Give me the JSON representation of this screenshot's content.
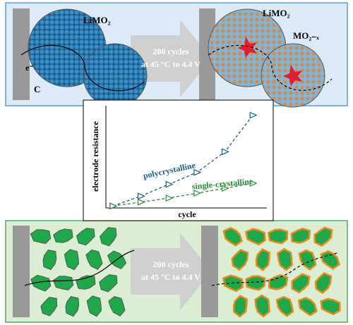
{
  "top_panel": {
    "pristine_particle_label": "LiMO₂",
    "electron_label": "e⁻",
    "carbon_label": "C",
    "arrow_line1": "200 cycles",
    "arrow_line2": "at 45 °C to 4.4 V",
    "cycled_particle_label": "LiMO₂",
    "rock_salt_label": "MO₂₋ₓ"
  },
  "chart_data": {
    "type": "line",
    "x_label": "cycle",
    "y_label": "electrode resistance",
    "x": [
      0,
      1,
      2,
      3,
      4,
      5
    ],
    "xlim": [
      -0.25,
      5.5
    ],
    "ylim": [
      0,
      10
    ],
    "series": [
      {
        "name": "polycrystalline",
        "color": "#1f5f8b",
        "values": [
          0.2,
          1.2,
          2.4,
          3.6,
          5.7,
          9.4
        ]
      },
      {
        "name": "single-crystalline",
        "color": "#2a8a3a",
        "values": [
          0.2,
          0.6,
          1.0,
          1.5,
          2.0,
          2.5
        ]
      }
    ]
  },
  "bottom_panel": {
    "arrow_line1": "200 cycles",
    "arrow_line2": "at 45 °C to 4.4 V"
  }
}
